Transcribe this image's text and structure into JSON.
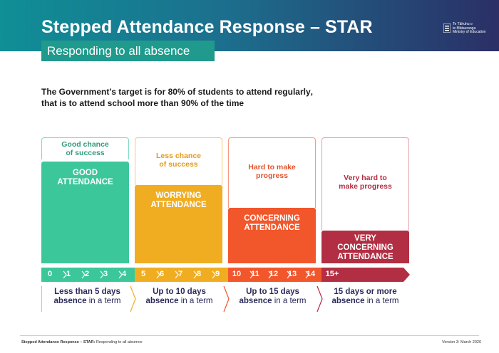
{
  "header": {
    "title_main": "Stepped Attendance Response – ",
    "title_emphasis": "STAR",
    "subtitle": "Responding to all absence",
    "logo_lines": [
      "Te Tāhuhu o",
      "te Mātauranga",
      "Ministry of Education"
    ]
  },
  "target": {
    "line1_pre": "The Government’s target is for ",
    "line1_bold": "80% of students to attend regularly",
    "line1_post": ",",
    "line2": "that is to attend school more than 90% of the time"
  },
  "columns": [
    {
      "chance": [
        "Good chance",
        "of success"
      ],
      "label": [
        "GOOD",
        "ATTENDANCE"
      ],
      "color": "#3cc79a",
      "frame": "#7fd8bf",
      "chance_color": "#2f9c7d"
    },
    {
      "chance": [
        "Less chance",
        "of success"
      ],
      "label": [
        "WORRYING",
        "ATTENDANCE"
      ],
      "color": "#f0ad22",
      "frame": "#f5c873",
      "chance_color": "#e49b1a"
    },
    {
      "chance": [
        "Hard to make",
        "progress"
      ],
      "label": [
        "CONCERNING",
        "ATTENDANCE"
      ],
      "color": "#f2562b",
      "frame": "#f59a80",
      "chance_color": "#e4532a"
    },
    {
      "chance": [
        "Very hard to",
        "make progress"
      ],
      "label": [
        "VERY",
        "CONCERNING",
        "ATTENDANCE"
      ],
      "color": "#b22e43",
      "frame": "#e3a0ac",
      "chance_color": "#b22e43"
    }
  ],
  "scale": {
    "numbers": [
      "0",
      "1",
      "2",
      "3",
      "4",
      "5",
      "6",
      "7",
      "8",
      "9",
      "10",
      "11",
      "12",
      "13",
      "14",
      "15+"
    ],
    "segment_colors": [
      "#3cc79a",
      "#f0ad22",
      "#f2562b",
      "#b22e43"
    ]
  },
  "ranges": [
    {
      "bold1": "Less than 5 days",
      "bold2": "absence",
      "rest": " in a term"
    },
    {
      "bold1": "Up to 10 days",
      "bold2": "absence",
      "rest": " in a term"
    },
    {
      "bold1": "Up to 15 days",
      "bold2": "absence",
      "rest": " in a term"
    },
    {
      "bold1": "15 days or more",
      "bold2": "absence",
      "rest": " in a term"
    }
  ],
  "footer": {
    "left_bold": "Stepped Attendance Response – STAR:",
    "left_rest": " Responding to all absence",
    "right": "Version 3: March 2026"
  }
}
